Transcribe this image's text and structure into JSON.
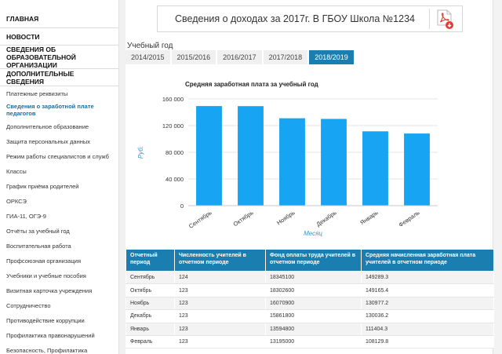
{
  "sidebar": {
    "main_items": [
      {
        "label": "ГЛАВНАЯ",
        "h": 0
      },
      {
        "label": "НОВОСТИ"
      },
      {
        "label": "СВЕДЕНИЯ ОБ ОБРАЗОВАТЕЛЬНОЙ ОРГАНИЗАЦИИ"
      },
      {
        "label": "ДОПОЛНИТЕЛЬНЫЕ СВЕДЕНИЯ"
      }
    ],
    "sub_items": [
      {
        "label": "Платежные реквизиты"
      },
      {
        "label": "Сведения о заработной плате педагогов",
        "active": true
      },
      {
        "label": "Дополнительное образование"
      },
      {
        "label": "Защита персональных данных"
      },
      {
        "label": "Режим работы специалистов и служб"
      },
      {
        "label": "Классы"
      },
      {
        "label": "График приёма родителей"
      },
      {
        "label": "ОРКСЭ"
      },
      {
        "label": "ГИА-11, ОГЭ-9"
      },
      {
        "label": "Отчёты за учебный год"
      },
      {
        "label": "Воспитательная работа"
      },
      {
        "label": "Профсоюзная организация"
      },
      {
        "label": "Учебники и учебные пособия"
      },
      {
        "label": "Визитная карточка учреждения"
      },
      {
        "label": "Сотрудничество"
      },
      {
        "label": "Противодействие коррупции"
      },
      {
        "label": "Профилактика правонарушений"
      },
      {
        "label": "Безопасность, Профилактика"
      }
    ]
  },
  "header": {
    "title": "Сведения о доходах за 2017г. В ГБОУ Школа №1234",
    "pdf_icon": "pdf-icon"
  },
  "year_selector": {
    "label": "Учебный год",
    "tabs": [
      "2014/2015",
      "2015/2016",
      "2016/2017",
      "2017/2018",
      "2018/2019"
    ],
    "active_index": 4
  },
  "chart_data": {
    "type": "bar",
    "title": "Средняя заработная плата за учебный год",
    "xlabel": "Месяц",
    "ylabel": "Руб.",
    "categories": [
      "Сентябрь",
      "Октябрь",
      "Ноябрь",
      "Декабрь",
      "Январь",
      "Февраль"
    ],
    "values": [
      149289.3,
      149165.4,
      130977.2,
      130036.2,
      111404.3,
      108129.8
    ],
    "ylim": [
      0,
      160000
    ],
    "yticks": [
      0,
      40000,
      80000,
      120000,
      160000
    ],
    "ytick_labels": [
      "0",
      "40 000",
      "80 000",
      "120 000",
      "160 000"
    ],
    "bar_color": "#17a4f2",
    "grid": true
  },
  "table": {
    "headers": [
      "Отчетный период",
      "Численность учителей в отчетном периоде",
      "Фонд оплаты труда учителей в отчетном периоде",
      "Средняя начисленная заработная плата учителей в отчетном периоде"
    ],
    "rows": [
      [
        "Сентябрь",
        "124",
        "18345100",
        "149289.3"
      ],
      [
        "Октябрь",
        "123",
        "18302600",
        "149165.4"
      ],
      [
        "Ноябрь",
        "123",
        "16070900",
        "130977.2"
      ],
      [
        "Декабрь",
        "123",
        "15861800",
        "130036.2"
      ],
      [
        "Январь",
        "123",
        "13594800",
        "111404.3"
      ],
      [
        "Февраль",
        "123",
        "13195000",
        "108129.8"
      ]
    ]
  },
  "colors": {
    "accent": "#1a7fb0",
    "bar": "#17a4f2"
  }
}
